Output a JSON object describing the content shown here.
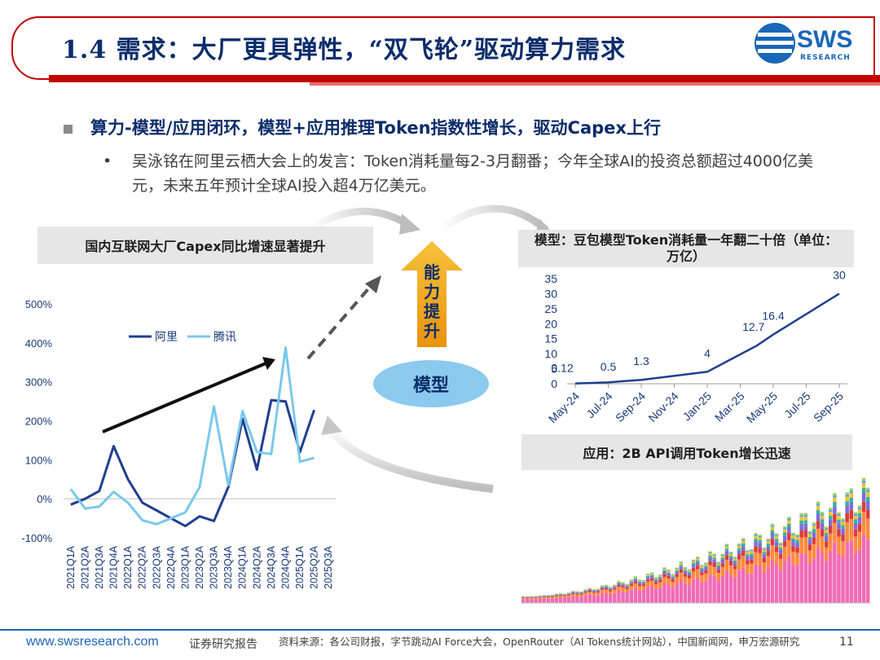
{
  "header": {
    "title": "1.4 需求：大厂更具弹性，“双飞轮”驱动算力需求",
    "logo_text": "SWS",
    "logo_sub": "RESEARCH"
  },
  "bullets": {
    "main": "算力-模型/应用闭环，模型+应用推理Token指数性增长，驱动Capex上行",
    "sub_dot": "•",
    "sub": "吴泳铭在阿里云栖大会上的发言：Token消耗量每2-3月翻番；今年全球AI的投资总额超过4000亿美元，未来五年预计全球AI投入超4万亿美元。"
  },
  "diagram": {
    "arrow_label": "能力提升",
    "center_label": "模型"
  },
  "labels": {
    "left_chart": "国内互联网大厂Capex同比增速显著提升",
    "right_chart": "模型：豆包模型Token消耗量一年翻二十倍（单位：万亿）",
    "bottom_right": "应用：2B API调用Token增长迅速"
  },
  "chart_data": [
    {
      "type": "line",
      "categories": [
        "2021Q1A",
        "2021Q2A",
        "2021Q3A",
        "2021Q4A",
        "2022Q1A",
        "2022Q2A",
        "2022Q3A",
        "2022Q4A",
        "2023Q1A",
        "2023Q2A",
        "2023Q3A",
        "2023Q4A",
        "2024Q1A",
        "2024Q2A",
        "2024Q3A",
        "2024Q4A",
        "2025Q1A",
        "2025Q2A",
        "2025Q3A"
      ],
      "series": [
        {
          "name": "阿里",
          "color": "#1f3f8f",
          "values": [
            -15,
            0,
            20,
            135,
            50,
            -10,
            -30,
            -50,
            -70,
            -45,
            -57,
            30,
            205,
            75,
            253,
            250,
            120,
            228,
            null
          ]
        },
        {
          "name": "腾讯",
          "color": "#79c8ea",
          "values": [
            25,
            -25,
            -20,
            18,
            -10,
            -55,
            -65,
            -50,
            -35,
            30,
            237,
            35,
            225,
            120,
            115,
            388,
            95,
            105,
            null
          ]
        }
      ],
      "yticks": [
        "500%",
        "400%",
        "300%",
        "200%",
        "100%",
        "0%",
        "-100%"
      ],
      "ylim": [
        -100,
        500
      ],
      "legend": "top-left"
    },
    {
      "type": "line",
      "x": [
        "May-24",
        "Jul-24",
        "Sep-24",
        "Nov-24",
        "Jan-25",
        "Mar-25",
        "May-25",
        "Jul-25",
        "Sep-25"
      ],
      "points": [
        {
          "x": "May-24",
          "y": 0.12,
          "label": "0.12"
        },
        {
          "x": "Jul-24",
          "y": 0.5,
          "label": "0.5"
        },
        {
          "x": "Sep-24",
          "y": 1.3,
          "label": "1.3"
        },
        {
          "x": "Jan-25",
          "y": 4,
          "label": "4"
        },
        {
          "x": "Apr-25",
          "y": 12.7,
          "label": "12.7"
        },
        {
          "x": "May-25",
          "y": 16.4,
          "label": "16.4"
        },
        {
          "x": "Sep-25",
          "y": 30,
          "label": "30"
        }
      ],
      "yticks": [
        0,
        5,
        10,
        15,
        20,
        25,
        30,
        35
      ],
      "ylim": [
        0,
        35
      ],
      "color": "#1f3f8f"
    }
  ],
  "footer": {
    "url": "www.swsresearch.com",
    "report": "证券研究报告",
    "source": "资料来源：各公司财报，字节跳动AI Force大会，OpenRouter（AI Tokens统计网站），中国新闻网，申万宏源研究",
    "page": "11"
  }
}
